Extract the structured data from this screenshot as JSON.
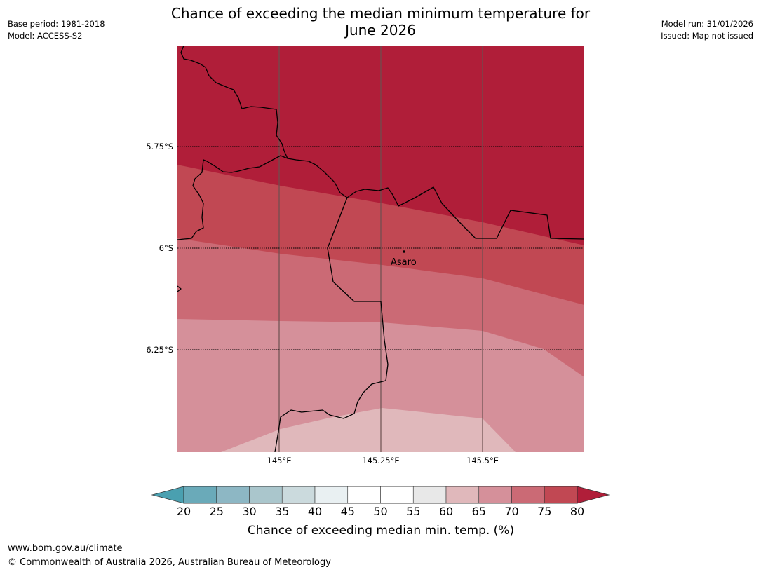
{
  "title_line1": "Chance of exceeding the median minimum temperature for",
  "title_line2": "June 2026",
  "base_period": "Base period: 1981-2018",
  "model": "Model: ACCESS-S2",
  "model_run": "Model run: 31/01/2026",
  "issued": "Issued: Map not issued",
  "lat_labels": [
    "5.75°S",
    "6°S",
    "6.25°S"
  ],
  "lon_labels": [
    "145°E",
    "145.25°E",
    "145.5°E"
  ],
  "place_label": "Asaro",
  "colorbar": {
    "ticks": [
      "20",
      "25",
      "30",
      "35",
      "40",
      "45",
      "50",
      "55",
      "60",
      "65",
      "70",
      "75",
      "80"
    ],
    "colors": [
      "#4aa0b0",
      "#6aaab9",
      "#8db7c4",
      "#aac6cc",
      "#cbdadd",
      "#e9f0f2",
      "#ffffff",
      "#ffffff",
      "#e8e8e8",
      "#e0b8bb",
      "#d5909a",
      "#cb6a75",
      "#c14853",
      "#b01e39"
    ],
    "label": "Chance of exceeding median min. temp. (%)"
  },
  "band_colors": {
    "above_80": "#b01e39",
    "75_80": "#c14853",
    "70_75": "#cb6a75",
    "65_70": "#d5909a",
    "60_65": "#e0b8bb"
  },
  "footer_url": "www.bom.gov.au/climate",
  "footer_copyright": "© Commonwealth of Australia 2026, Australian Bureau of Meteorology"
}
